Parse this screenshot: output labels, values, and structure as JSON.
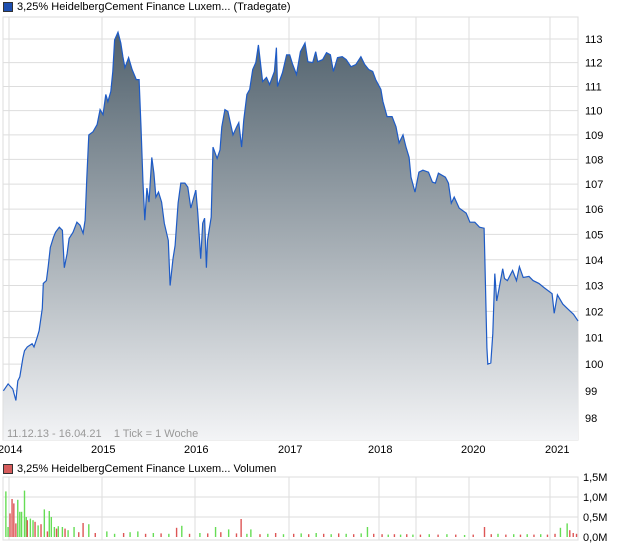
{
  "price_legend": {
    "label": "3,25% HeidelbergCement Finance Luxem... (Tradegate)",
    "color": "#1e4fb0"
  },
  "volume_legend": {
    "label": "3,25% HeidelbergCement Finance Luxem... Volumen",
    "color": "#d65c5c"
  },
  "info_text": "11.12.13 - 16.04.21    1 Tick = 1 Woche",
  "colors": {
    "line": "#1e5bc6",
    "fill_top": "#4b5c68",
    "fill_bottom": "#f3f4f6",
    "grid": "#dddddd",
    "volume_up": "#66dd55",
    "volume_down": "#dd5555"
  },
  "chart_data": [
    {
      "type": "area",
      "title": "3,25% HeidelbergCement Finance Luxem... (Tradegate)",
      "y_scale": "log",
      "ylim": [
        97.2,
        113.9
      ],
      "y_ticks": [
        "113",
        "112",
        "111",
        "110",
        "109",
        "108",
        "107",
        "106",
        "105",
        "104",
        "103",
        "102",
        "101",
        "100",
        "99",
        "98"
      ],
      "x_ticks": [
        "2014",
        "2015",
        "2016",
        "2017",
        "2018",
        "2020",
        "2021"
      ],
      "grid": true,
      "y_axis_side": "right",
      "points": [
        [
          "2013-12-11",
          99.0
        ],
        [
          "2013-12-28",
          99.26
        ],
        [
          "2014-01-16",
          99.07
        ],
        [
          "2014-01-28",
          98.64
        ],
        [
          "2014-02-05",
          99.37
        ],
        [
          "2014-02-13",
          99.52
        ],
        [
          "2014-02-25",
          100.23
        ],
        [
          "2014-03-01",
          100.5
        ],
        [
          "2014-03-12",
          100.65
        ],
        [
          "2014-03-31",
          100.77
        ],
        [
          "2014-04-08",
          100.65
        ],
        [
          "2014-04-20",
          101.0
        ],
        [
          "2014-04-28",
          101.26
        ],
        [
          "2014-05-10",
          102.12
        ],
        [
          "2014-05-14",
          103.08
        ],
        [
          "2014-05-26",
          103.19
        ],
        [
          "2014-06-03",
          103.77
        ],
        [
          "2014-06-11",
          104.48
        ],
        [
          "2014-06-23",
          104.88
        ],
        [
          "2014-07-01",
          105.08
        ],
        [
          "2014-07-16",
          105.28
        ],
        [
          "2014-07-28",
          105.16
        ],
        [
          "2014-08-05",
          103.69
        ],
        [
          "2014-08-16",
          104.24
        ],
        [
          "2014-08-24",
          104.84
        ],
        [
          "2014-09-09",
          105.08
        ],
        [
          "2014-09-24",
          105.48
        ],
        [
          "2014-10-06",
          105.36
        ],
        [
          "2014-10-18",
          105.04
        ],
        [
          "2014-10-26",
          105.56
        ],
        [
          "2014-11-02",
          107.24
        ],
        [
          "2014-11-10",
          109.0
        ],
        [
          "2014-11-26",
          109.12
        ],
        [
          "2014-12-12",
          109.42
        ],
        [
          "2014-12-24",
          110.04
        ],
        [
          "2015-01-05",
          109.83
        ],
        [
          "2015-01-16",
          110.67
        ],
        [
          "2015-01-24",
          110.37
        ],
        [
          "2015-02-05",
          110.79
        ],
        [
          "2015-02-13",
          111.63
        ],
        [
          "2015-02-20",
          112.96
        ],
        [
          "2015-03-03",
          113.29
        ],
        [
          "2015-03-14",
          112.83
        ],
        [
          "2015-03-22",
          112.25
        ],
        [
          "2015-03-30",
          111.79
        ],
        [
          "2015-04-14",
          112.21
        ],
        [
          "2015-04-28",
          111.71
        ],
        [
          "2015-05-14",
          111.29
        ],
        [
          "2015-05-25",
          111.29
        ],
        [
          "2015-06-02",
          109.33
        ],
        [
          "2015-06-10",
          107.04
        ],
        [
          "2015-06-17",
          105.56
        ],
        [
          "2015-06-25",
          106.84
        ],
        [
          "2015-07-03",
          106.28
        ],
        [
          "2015-07-14",
          108.08
        ],
        [
          "2015-07-22",
          107.44
        ],
        [
          "2015-07-30",
          106.48
        ],
        [
          "2015-08-10",
          106.68
        ],
        [
          "2015-08-22",
          106.28
        ],
        [
          "2015-09-02",
          105.44
        ],
        [
          "2015-09-18",
          104.76
        ],
        [
          "2015-09-25",
          103.0
        ],
        [
          "2015-10-06",
          104.04
        ],
        [
          "2015-10-14",
          104.56
        ],
        [
          "2015-10-26",
          106.24
        ],
        [
          "2015-11-06",
          107.04
        ],
        [
          "2015-11-22",
          107.04
        ],
        [
          "2015-12-03",
          106.88
        ],
        [
          "2015-12-15",
          106.04
        ],
        [
          "2016-01-04",
          106.76
        ],
        [
          "2016-01-12",
          105.84
        ],
        [
          "2016-01-23",
          104.04
        ],
        [
          "2016-01-31",
          105.44
        ],
        [
          "2016-02-08",
          105.64
        ],
        [
          "2016-02-15",
          103.69
        ],
        [
          "2016-02-19",
          104.76
        ],
        [
          "2016-03-03",
          105.68
        ],
        [
          "2016-03-10",
          108.5
        ],
        [
          "2016-03-26",
          108.04
        ],
        [
          "2016-04-07",
          108.38
        ],
        [
          "2016-04-14",
          109.33
        ],
        [
          "2016-04-26",
          110.04
        ],
        [
          "2016-05-07",
          109.96
        ],
        [
          "2016-05-27",
          109.0
        ],
        [
          "2016-06-11",
          109.33
        ],
        [
          "2016-06-19",
          109.5
        ],
        [
          "2016-06-30",
          108.5
        ],
        [
          "2016-07-08",
          109.63
        ],
        [
          "2016-07-20",
          110.67
        ],
        [
          "2016-07-31",
          110.88
        ],
        [
          "2016-08-12",
          111.71
        ],
        [
          "2016-08-24",
          112.0
        ],
        [
          "2016-09-04",
          112.75
        ],
        [
          "2016-09-20",
          111.21
        ],
        [
          "2016-10-05",
          111.38
        ],
        [
          "2016-10-17",
          111.08
        ],
        [
          "2016-11-05",
          111.63
        ],
        [
          "2016-11-13",
          112.63
        ],
        [
          "2016-11-17",
          111.0
        ],
        [
          "2016-12-06",
          111.58
        ],
        [
          "2016-12-22",
          112.33
        ],
        [
          "2017-01-04",
          112.33
        ],
        [
          "2017-01-16",
          111.92
        ],
        [
          "2017-02-01",
          111.5
        ],
        [
          "2017-02-17",
          112.46
        ],
        [
          "2017-03-05",
          112.83
        ],
        [
          "2017-03-17",
          112.04
        ],
        [
          "2017-04-06",
          112.0
        ],
        [
          "2017-04-18",
          112.46
        ],
        [
          "2017-04-26",
          112.04
        ],
        [
          "2017-05-16",
          112.13
        ],
        [
          "2017-06-01",
          112.42
        ],
        [
          "2017-06-17",
          112.33
        ],
        [
          "2017-06-29",
          111.63
        ],
        [
          "2017-07-15",
          112.21
        ],
        [
          "2017-08-04",
          112.25
        ],
        [
          "2017-08-20",
          112.13
        ],
        [
          "2017-09-09",
          111.83
        ],
        [
          "2017-09-29",
          111.92
        ],
        [
          "2017-10-19",
          112.25
        ],
        [
          "2017-11-04",
          111.92
        ],
        [
          "2017-11-20",
          111.71
        ],
        [
          "2017-12-06",
          111.63
        ],
        [
          "2017-12-18",
          111.29
        ],
        [
          "2018-01-10",
          110.96
        ],
        [
          "2018-01-20",
          110.88
        ],
        [
          "2018-02-09",
          110.38
        ],
        [
          "2018-03-20",
          109.75
        ],
        [
          "2018-05-09",
          109.75
        ],
        [
          "2018-06-17",
          109.33
        ],
        [
          "2018-07-17",
          108.67
        ],
        [
          "2018-08-25",
          109.0
        ],
        [
          "2018-09-24",
          108.5
        ],
        [
          "2018-10-24",
          108.08
        ],
        [
          "2018-11-13",
          107.28
        ],
        [
          "2018-12-22",
          106.68
        ],
        [
          "2019-01-21",
          107.48
        ],
        [
          "2019-02-18",
          107.56
        ],
        [
          "2019-03-26",
          107.48
        ],
        [
          "2019-04-23",
          107.08
        ],
        [
          "2019-05-13",
          107.04
        ],
        [
          "2019-06-03",
          107.44
        ],
        [
          "2019-07-21",
          107.28
        ],
        [
          "2019-08-11",
          107.04
        ],
        [
          "2019-08-31",
          106.24
        ],
        [
          "2019-09-21",
          106.48
        ],
        [
          "2019-10-25",
          106.04
        ],
        [
          "2019-12-12",
          105.84
        ],
        [
          "2020-01-05",
          105.48
        ],
        [
          "2020-01-27",
          105.48
        ],
        [
          "2020-02-18",
          105.28
        ],
        [
          "2020-03-08",
          105.24
        ],
        [
          "2020-03-12",
          103.96
        ],
        [
          "2020-03-21",
          100.62
        ],
        [
          "2020-03-25",
          100.0
        ],
        [
          "2020-04-08",
          100.04
        ],
        [
          "2020-04-17",
          101.15
        ],
        [
          "2020-04-26",
          103.46
        ],
        [
          "2020-05-04",
          102.4
        ],
        [
          "2020-05-13",
          102.8
        ],
        [
          "2020-05-31",
          103.65
        ],
        [
          "2020-06-09",
          103.27
        ],
        [
          "2020-06-22",
          103.19
        ],
        [
          "2020-07-15",
          103.58
        ],
        [
          "2020-08-02",
          103.19
        ],
        [
          "2020-08-15",
          103.73
        ],
        [
          "2020-09-02",
          103.31
        ],
        [
          "2020-09-28",
          103.35
        ],
        [
          "2020-10-16",
          103.19
        ],
        [
          "2020-11-12",
          103.08
        ],
        [
          "2020-12-04",
          102.92
        ],
        [
          "2021-01-09",
          102.68
        ],
        [
          "2021-01-17",
          101.93
        ],
        [
          "2021-01-29",
          102.64
        ],
        [
          "2021-02-19",
          102.28
        ],
        [
          "2021-03-09",
          102.08
        ],
        [
          "2021-03-29",
          101.89
        ],
        [
          "2021-04-16",
          101.63
        ]
      ]
    },
    {
      "type": "bar",
      "title": "3,25% HeidelbergCement Finance Luxem... Volumen",
      "y_ticks": [
        "1,5M",
        "1,0M",
        "0,5M",
        "0,0M"
      ],
      "ylim": [
        0,
        1.5
      ],
      "unit": "M",
      "grid": true,
      "bars": [
        [
          "2013-12-20",
          1.14,
          "up"
        ],
        [
          "2013-12-28",
          0.25,
          "up"
        ],
        [
          "2014-01-05",
          0.59,
          "down"
        ],
        [
          "2014-01-13",
          0.95,
          "down"
        ],
        [
          "2014-01-20",
          0.84,
          "down"
        ],
        [
          "2014-01-28",
          0.34,
          "down"
        ],
        [
          "2014-02-05",
          0.93,
          "up"
        ],
        [
          "2014-02-13",
          0.63,
          "up"
        ],
        [
          "2014-02-20",
          0.63,
          "up"
        ],
        [
          "2014-03-01",
          1.16,
          "up"
        ],
        [
          "2014-03-08",
          0.5,
          "up"
        ],
        [
          "2014-03-12",
          0.42,
          "down"
        ],
        [
          "2014-03-24",
          0.46,
          "up"
        ],
        [
          "2014-04-04",
          0.42,
          "up"
        ],
        [
          "2014-04-12",
          0.38,
          "down"
        ],
        [
          "2014-04-24",
          0.29,
          "up"
        ],
        [
          "2014-05-05",
          0.32,
          "down"
        ],
        [
          "2014-05-18",
          0.69,
          "up"
        ],
        [
          "2014-05-30",
          0.14,
          "down"
        ],
        [
          "2014-06-07",
          0.65,
          "up"
        ],
        [
          "2014-06-15",
          0.5,
          "up"
        ],
        [
          "2014-06-27",
          0.25,
          "up"
        ],
        [
          "2014-07-05",
          0.21,
          "down"
        ],
        [
          "2014-07-12",
          0.27,
          "up"
        ],
        [
          "2014-07-28",
          0.25,
          "up"
        ],
        [
          "2014-08-08",
          0.21,
          "down"
        ],
        [
          "2014-08-20",
          0.17,
          "up"
        ],
        [
          "2014-09-13",
          0.25,
          "up"
        ],
        [
          "2014-10-01",
          0.12,
          "down"
        ],
        [
          "2014-10-18",
          0.35,
          "down"
        ],
        [
          "2014-11-10",
          0.32,
          "up"
        ],
        [
          "2014-12-05",
          0.1,
          "down"
        ],
        [
          "2015-01-20",
          0.14,
          "up"
        ],
        [
          "2015-02-20",
          0.08,
          "up"
        ],
        [
          "2015-03-25",
          0.1,
          "down"
        ],
        [
          "2015-04-20",
          0.12,
          "up"
        ],
        [
          "2015-05-20",
          0.14,
          "up"
        ],
        [
          "2015-06-20",
          0.08,
          "down"
        ],
        [
          "2015-07-20",
          0.1,
          "up"
        ],
        [
          "2015-08-20",
          0.09,
          "down"
        ],
        [
          "2015-09-20",
          0.08,
          "up"
        ],
        [
          "2015-10-20",
          0.23,
          "down"
        ],
        [
          "2015-11-10",
          0.28,
          "up"
        ],
        [
          "2015-12-10",
          0.08,
          "down"
        ],
        [
          "2016-01-20",
          0.1,
          "up"
        ],
        [
          "2016-02-20",
          0.09,
          "down"
        ],
        [
          "2016-03-20",
          0.25,
          "up"
        ],
        [
          "2016-04-10",
          0.12,
          "down"
        ],
        [
          "2016-05-10",
          0.19,
          "up"
        ],
        [
          "2016-06-10",
          0.09,
          "down"
        ],
        [
          "2016-06-28",
          0.45,
          "down"
        ],
        [
          "2016-07-20",
          0.08,
          "up"
        ],
        [
          "2016-08-05",
          0.19,
          "up"
        ],
        [
          "2016-09-10",
          0.07,
          "down"
        ],
        [
          "2016-10-10",
          0.08,
          "up"
        ],
        [
          "2016-11-10",
          0.1,
          "down"
        ],
        [
          "2016-12-10",
          0.07,
          "up"
        ],
        [
          "2017-01-20",
          0.08,
          "down"
        ],
        [
          "2017-02-20",
          0.09,
          "up"
        ],
        [
          "2017-03-20",
          0.07,
          "down"
        ],
        [
          "2017-04-20",
          0.1,
          "up"
        ],
        [
          "2017-05-20",
          0.08,
          "down"
        ],
        [
          "2017-06-20",
          0.07,
          "up"
        ],
        [
          "2017-07-20",
          0.09,
          "down"
        ],
        [
          "2017-08-20",
          0.08,
          "up"
        ],
        [
          "2017-09-20",
          0.07,
          "down"
        ],
        [
          "2017-10-20",
          0.09,
          "up"
        ],
        [
          "2017-11-15",
          0.25,
          "up"
        ],
        [
          "2017-12-10",
          0.08,
          "down"
        ],
        [
          "2018-02-01",
          0.07,
          "down"
        ],
        [
          "2018-04-01",
          0.06,
          "up"
        ],
        [
          "2018-06-01",
          0.07,
          "down"
        ],
        [
          "2018-08-01",
          0.06,
          "up"
        ],
        [
          "2018-10-01",
          0.07,
          "down"
        ],
        [
          "2018-12-01",
          0.06,
          "up"
        ],
        [
          "2019-02-01",
          0.06,
          "down"
        ],
        [
          "2019-04-01",
          0.07,
          "up"
        ],
        [
          "2019-06-01",
          0.06,
          "down"
        ],
        [
          "2019-08-01",
          0.07,
          "up"
        ],
        [
          "2019-10-01",
          0.06,
          "down"
        ],
        [
          "2019-12-01",
          0.05,
          "up"
        ],
        [
          "2020-01-20",
          0.06,
          "down"
        ],
        [
          "2020-03-10",
          0.25,
          "down"
        ],
        [
          "2020-04-10",
          0.07,
          "down"
        ],
        [
          "2020-05-10",
          0.08,
          "up"
        ],
        [
          "2020-06-15",
          0.06,
          "down"
        ],
        [
          "2020-07-20",
          0.07,
          "up"
        ],
        [
          "2020-08-20",
          0.06,
          "down"
        ],
        [
          "2020-09-20",
          0.07,
          "up"
        ],
        [
          "2020-10-20",
          0.06,
          "down"
        ],
        [
          "2020-11-20",
          0.07,
          "up"
        ],
        [
          "2020-12-20",
          0.06,
          "down"
        ],
        [
          "2021-01-20",
          0.08,
          "down"
        ],
        [
          "2021-02-10",
          0.23,
          "up"
        ],
        [
          "2021-03-05",
          0.34,
          "up"
        ],
        [
          "2021-03-15",
          0.17,
          "down"
        ],
        [
          "2021-03-28",
          0.1,
          "down"
        ],
        [
          "2021-04-10",
          0.08,
          "down"
        ]
      ]
    }
  ]
}
